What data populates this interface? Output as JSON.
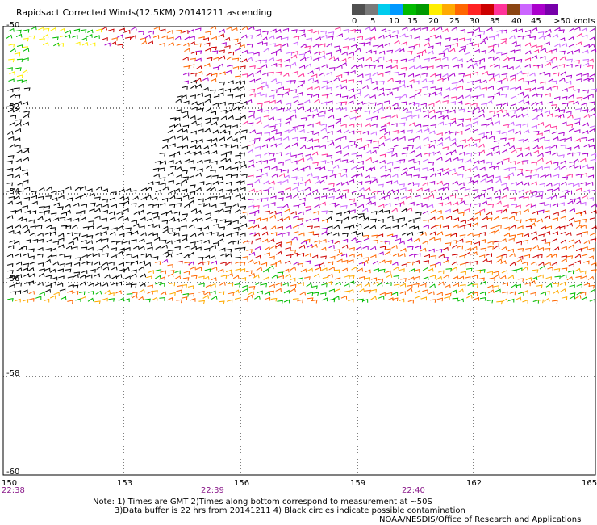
{
  "title": "Rapidsact Corrected Winds(12.5KM) 20141211 ascending",
  "legend": {
    "ticks": [
      "0",
      "5",
      "10",
      "15",
      "20",
      "25",
      "30",
      "35",
      "40",
      "45",
      ">50 knots"
    ],
    "colors": [
      "#505050",
      "#7a7a7a",
      "#00ccee",
      "#0099ff",
      "#00bb00",
      "#009900",
      "#ffee00",
      "#ffaa00",
      "#ff6600",
      "#ff2222",
      "#cc0000",
      "#ff3399",
      "#8b4513",
      "#cc66ff",
      "#aa00cc",
      "#7700aa"
    ]
  },
  "axes": {
    "lon_labels": [
      "150",
      "153",
      "156",
      "159",
      "162",
      "165"
    ],
    "lat_labels": [
      "-50",
      "-52",
      "-54",
      "-56",
      "-58",
      "-60"
    ],
    "time_labels": [
      "22:38",
      "22:39",
      "22:40"
    ]
  },
  "notes": {
    "line1": "Note: 1) Times are GMT 2)Times along bottom correspond to measurement at ~50S",
    "line2": "3)Data buffer is 22 hrs from 20141211 4) Black circles indicate possible contamination",
    "line3": "NOAA/NESDIS/Office of Research and Applications"
  }
}
